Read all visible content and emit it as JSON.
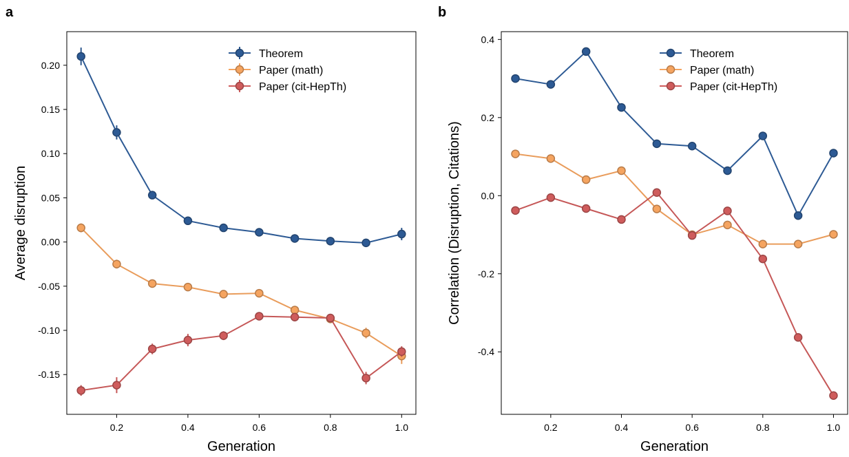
{
  "chart_data": [
    {
      "panel_label": "a",
      "type": "line",
      "xlabel": "Generation",
      "ylabel": "Average disruption",
      "xlim": [
        0.06,
        1.04
      ],
      "ylim": [
        -0.195,
        0.238
      ],
      "xticks": [
        0.2,
        0.4,
        0.6,
        0.8,
        1.0
      ],
      "xtick_labels": [
        "0.2",
        "0.4",
        "0.6",
        "0.8",
        "1.0"
      ],
      "yticks": [
        -0.15,
        -0.1,
        -0.05,
        0.0,
        0.05,
        0.1,
        0.15,
        0.2
      ],
      "ytick_labels": [
        "-0.15",
        "-0.10",
        "-0.05",
        "0.00",
        "0.05",
        "0.10",
        "0.15",
        "0.20"
      ],
      "error_bars": true,
      "grid": false,
      "legend_position": "top-right",
      "x": [
        0.1,
        0.2,
        0.3,
        0.4,
        0.5,
        0.6,
        0.7,
        0.8,
        0.9,
        1.0
      ],
      "series": [
        {
          "name": "Theorem",
          "color": "#2d5a94",
          "values": [
            0.21,
            0.124,
            0.053,
            0.024,
            0.016,
            0.011,
            0.004,
            0.001,
            -0.001,
            0.009
          ],
          "errors": [
            0.01,
            0.008,
            0.004,
            0.003,
            0.002,
            0.002,
            0.002,
            0.002,
            0.003,
            0.007
          ]
        },
        {
          "name": "Paper (math)",
          "color": "#f5a460",
          "values": [
            0.016,
            -0.025,
            -0.047,
            -0.051,
            -0.059,
            -0.058,
            -0.077,
            -0.087,
            -0.103,
            -0.129
          ],
          "errors": [
            0.005,
            0.005,
            0.003,
            0.004,
            0.003,
            0.003,
            0.004,
            0.004,
            0.006,
            0.009
          ]
        },
        {
          "name": "Paper (cit-HepTh)",
          "color": "#cf5c5c",
          "values": [
            -0.168,
            -0.162,
            -0.121,
            -0.111,
            -0.106,
            -0.084,
            -0.085,
            -0.086,
            -0.154,
            -0.124
          ],
          "errors": [
            0.006,
            0.009,
            0.006,
            0.007,
            0.005,
            0.003,
            0.003,
            0.003,
            0.007,
            0.006
          ]
        }
      ]
    },
    {
      "panel_label": "b",
      "type": "line",
      "xlabel": "Generation",
      "ylabel": "Correlation (Disruption, Citations)",
      "xlim": [
        0.06,
        1.04
      ],
      "ylim": [
        -0.56,
        0.42
      ],
      "xticks": [
        0.2,
        0.4,
        0.6,
        0.8,
        1.0
      ],
      "xtick_labels": [
        "0.2",
        "0.4",
        "0.6",
        "0.8",
        "1.0"
      ],
      "yticks": [
        -0.4,
        -0.2,
        0.0,
        0.2,
        0.4
      ],
      "ytick_labels": [
        "-0.4",
        "-0.2",
        "0.0",
        "0.2",
        "0.4"
      ],
      "error_bars": false,
      "grid": false,
      "legend_position": "top-right",
      "x": [
        0.1,
        0.2,
        0.3,
        0.4,
        0.5,
        0.6,
        0.7,
        0.8,
        0.9,
        1.0
      ],
      "series": [
        {
          "name": "Theorem",
          "color": "#2d5a94",
          "values": [
            0.3,
            0.285,
            0.369,
            0.226,
            0.133,
            0.127,
            0.064,
            0.153,
            -0.051,
            0.109
          ]
        },
        {
          "name": "Paper (math)",
          "color": "#f5a460",
          "values": [
            0.107,
            0.095,
            0.041,
            0.064,
            -0.034,
            -0.1,
            -0.075,
            -0.124,
            -0.124,
            -0.099
          ]
        },
        {
          "name": "Paper (cit-HepTh)",
          "color": "#cf5c5c",
          "values": [
            -0.038,
            -0.005,
            -0.033,
            -0.061,
            0.008,
            -0.102,
            -0.039,
            -0.162,
            -0.363,
            -0.512
          ]
        }
      ]
    }
  ]
}
